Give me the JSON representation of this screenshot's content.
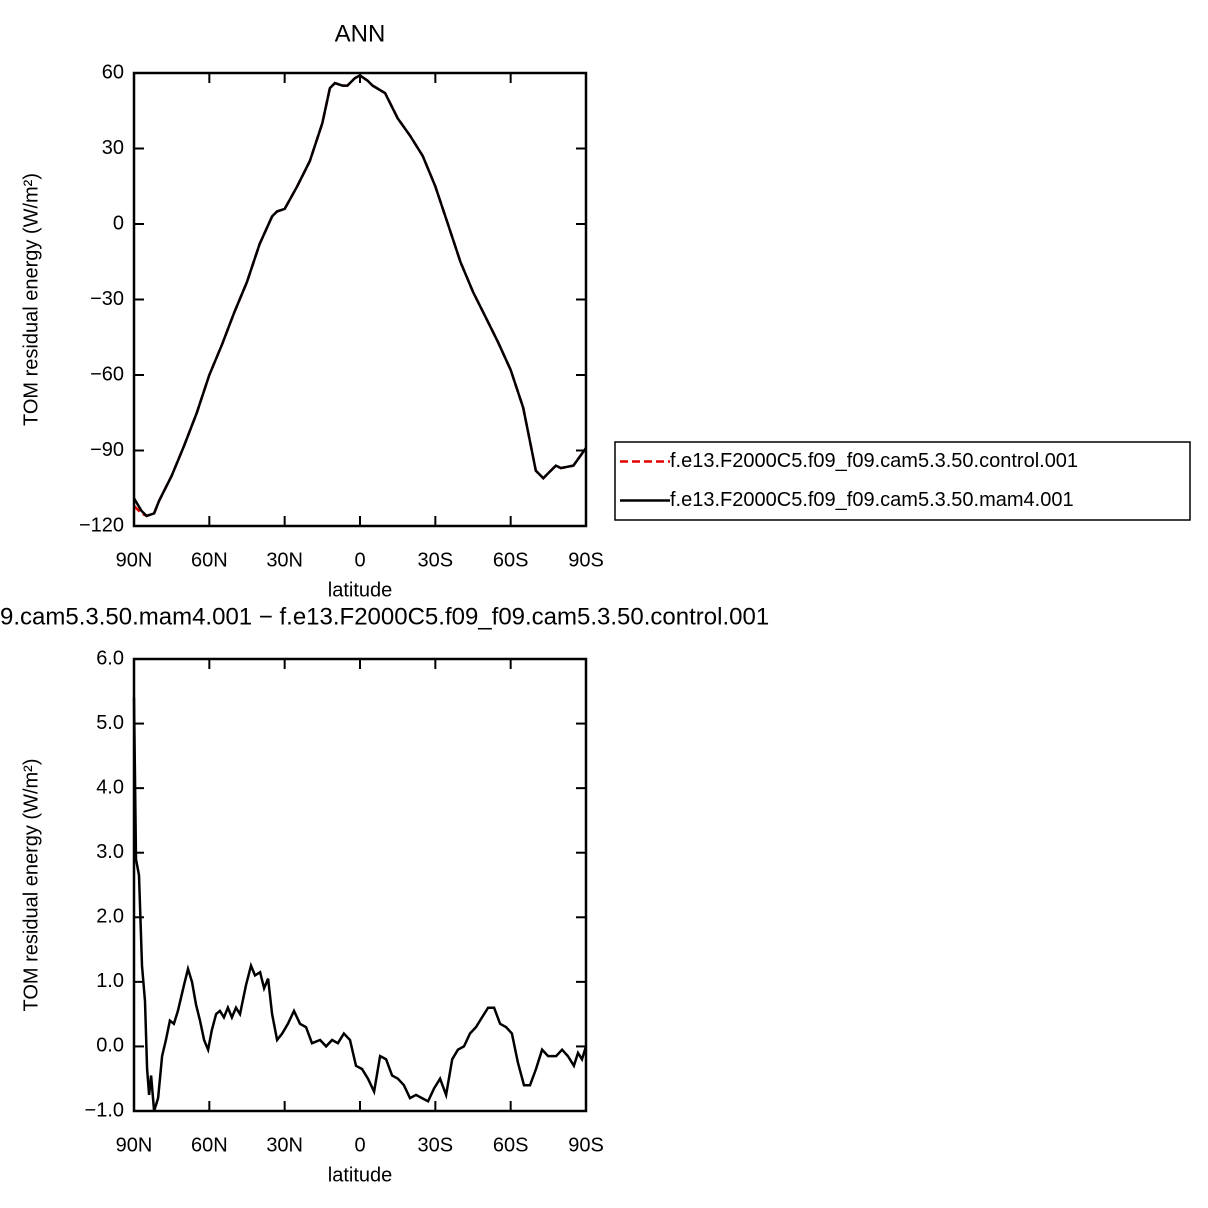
{
  "chart_data": [
    {
      "type": "line",
      "title": "ANN",
      "x_label": "latitude",
      "y_label": "TOM residual energy (W/m²)",
      "x": [
        90,
        87,
        85,
        82,
        80,
        75,
        70,
        65,
        60,
        55,
        50,
        45,
        40,
        35,
        33,
        30,
        25,
        20,
        15,
        12,
        10,
        7,
        5,
        2,
        0,
        -3,
        -5,
        -10,
        -15,
        -20,
        -25,
        -30,
        -35,
        -40,
        -45,
        -50,
        -55,
        -60,
        -65,
        -68,
        -70,
        -73,
        -75,
        -78,
        -80,
        -85,
        -90
      ],
      "series": [
        {
          "name": "f.e13.F2000C5.f09_f09.cam5.3.50.control.001",
          "color": "#e00000",
          "dash": true,
          "values": [
            -112,
            -115,
            -116,
            -115,
            -110,
            -100,
            -88,
            -75,
            -60,
            -48,
            -35,
            -23,
            -8,
            3,
            5,
            6,
            15,
            25,
            40,
            54,
            56,
            55,
            55,
            58,
            59,
            57,
            55,
            52,
            42,
            35,
            27,
            15,
            0,
            -15,
            -27,
            -37,
            -47,
            -58,
            -73,
            -88,
            -98,
            -101,
            -99,
            -96,
            -97,
            -96,
            -89
          ]
        },
        {
          "name": "f.e13.F2000C5.f09_f09.cam5.3.50.mam4.001",
          "color": "#000000",
          "dash": false,
          "values": [
            -109,
            -114,
            -116,
            -115,
            -110,
            -100,
            -88,
            -75,
            -60,
            -48,
            -35,
            -23,
            -8,
            3,
            5,
            6,
            15,
            25,
            40,
            54,
            56,
            55,
            55,
            58,
            59,
            57,
            55,
            52,
            42,
            35,
            27,
            15,
            0,
            -15,
            -27,
            -37,
            -47,
            -58,
            -73,
            -88,
            -98,
            -101,
            -99,
            -96,
            -97,
            -96,
            -89
          ]
        }
      ],
      "xlim": [
        90,
        -90
      ],
      "xticks": [
        {
          "value": 90,
          "label": "90N"
        },
        {
          "value": 60,
          "label": "60N"
        },
        {
          "value": 30,
          "label": "30N"
        },
        0,
        {
          "value": -30,
          "label": "30S"
        },
        {
          "value": -60,
          "label": "60S"
        },
        {
          "value": -90,
          "label": "90S"
        }
      ],
      "ylim": [
        -120,
        60
      ],
      "yticks": [
        60,
        30,
        0,
        {
          "value": -30,
          "label": "−30"
        },
        {
          "value": -60,
          "label": "−60"
        },
        {
          "value": -90,
          "label": "−90"
        },
        {
          "value": -120,
          "label": "−120"
        }
      ],
      "legend": "right"
    },
    {
      "type": "line",
      "title": "9.cam5.3.50.mam4.001 − f.e13.F2000C5.f09_f09.cam5.3.50.control.001",
      "x_label": "latitude",
      "y_label": "TOM residual energy (W/m²)",
      "x": [
        90,
        89.2,
        88,
        86.8,
        85.6,
        84.8,
        84,
        83.2,
        82,
        80.4,
        78.8,
        77.3,
        75.7,
        74.1,
        72.5,
        70.1,
        68.5,
        66.9,
        65.3,
        63.7,
        62.1,
        60.5,
        59,
        57.3,
        55.8,
        54.2,
        52.6,
        51,
        49.4,
        47.8,
        45.4,
        43.4,
        41.8,
        39.8,
        38.2,
        36.6,
        35,
        33,
        31,
        28.7,
        26.3,
        23.9,
        21.5,
        19.1,
        15.9,
        13.5,
        11.1,
        8.8,
        6.4,
        4,
        1.6,
        -0.8,
        -3.2,
        -5.6,
        -8,
        -10.4,
        -12.8,
        -15.1,
        -17.5,
        -19.9,
        -22.3,
        -24.7,
        -27.1,
        -29.5,
        -31.9,
        -34.3,
        -36.7,
        -39,
        -41.4,
        -43.8,
        -46.2,
        -48.6,
        -51,
        -53.4,
        -55.8,
        -58.2,
        -60.5,
        -62.9,
        -65.3,
        -67.7,
        -70.1,
        -72.5,
        -74.9,
        -78.1,
        -80.5,
        -82.8,
        -85.2,
        -86.8,
        -88.4,
        -90
      ],
      "series": [
        {
          "color": "#000000",
          "values": [
            5.4,
            2.9,
            2.65,
            1.25,
            0.7,
            -0.35,
            -0.75,
            -0.45,
            -1.0,
            -0.8,
            -0.15,
            0.1,
            0.4,
            0.35,
            0.55,
            0.95,
            1.2,
            1.0,
            0.65,
            0.4,
            0.1,
            -0.05,
            0.25,
            0.5,
            0.55,
            0.45,
            0.6,
            0.45,
            0.6,
            0.5,
            0.95,
            1.25,
            1.1,
            1.15,
            0.9,
            1.05,
            0.5,
            0.1,
            0.2,
            0.35,
            0.55,
            0.35,
            0.3,
            0.05,
            0.1,
            0.0,
            0.1,
            0.05,
            0.2,
            0.1,
            -0.3,
            -0.35,
            -0.5,
            -0.7,
            -0.15,
            -0.2,
            -0.45,
            -0.5,
            -0.6,
            -0.8,
            -0.75,
            -0.8,
            -0.85,
            -0.65,
            -0.5,
            -0.75,
            -0.2,
            -0.05,
            0.0,
            0.2,
            0.3,
            0.45,
            0.6,
            0.6,
            0.35,
            0.3,
            0.2,
            -0.25,
            -0.6,
            -0.6,
            -0.35,
            -0.05,
            -0.15,
            -0.15,
            -0.05,
            -0.15,
            -0.3,
            -0.1,
            -0.2,
            0.0
          ]
        }
      ],
      "xlim": [
        90,
        -90
      ],
      "xticks": [
        {
          "value": 90,
          "label": "90N"
        },
        {
          "value": 60,
          "label": "60N"
        },
        {
          "value": 30,
          "label": "30N"
        },
        0,
        {
          "value": -30,
          "label": "30S"
        },
        {
          "value": -60,
          "label": "60S"
        },
        {
          "value": -90,
          "label": "90S"
        }
      ],
      "ylim": [
        -1,
        6
      ],
      "yticks": [
        {
          "value": 6,
          "label": "6.0"
        },
        {
          "value": 5,
          "label": "5.0"
        },
        {
          "value": 4,
          "label": "4.0"
        },
        {
          "value": 3,
          "label": "3.0"
        },
        {
          "value": 2,
          "label": "2.0"
        },
        {
          "value": 1,
          "label": "1.0"
        },
        {
          "value": 0,
          "label": "0.0"
        },
        {
          "value": -1,
          "label": "−1.0"
        }
      ]
    }
  ]
}
